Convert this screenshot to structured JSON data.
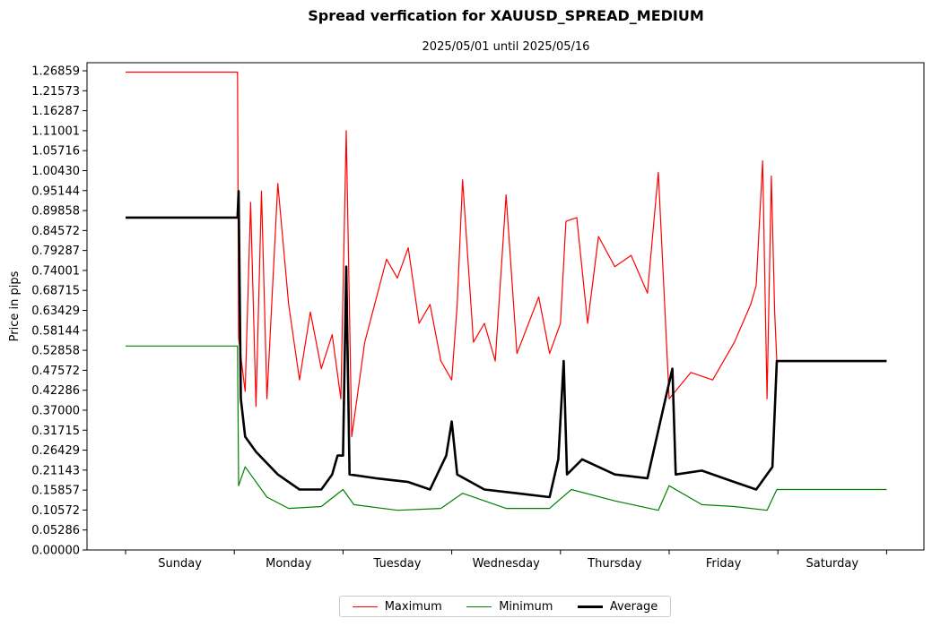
{
  "chart_data": {
    "type": "line",
    "title": "Spread verfication for XAUUSD_SPREAD_MEDIUM",
    "subtitle": "2025/05/01 until 2025/05/16",
    "ylabel": "Price in pips",
    "xlabel": "",
    "ylim": [
      0,
      1.29
    ],
    "yticks": [
      "0.00000",
      "0.05286",
      "0.10572",
      "0.15857",
      "0.21143",
      "0.26429",
      "0.31715",
      "0.37000",
      "0.42286",
      "0.47572",
      "0.52858",
      "0.58144",
      "0.63429",
      "0.68715",
      "0.74001",
      "0.79287",
      "0.84572",
      "0.89858",
      "0.95144",
      "1.00430",
      "1.05716",
      "1.11001",
      "1.16287",
      "1.21573",
      "1.26859"
    ],
    "categories": [
      "Sunday",
      "Monday",
      "Tuesday",
      "Wednesday",
      "Thursday",
      "Friday",
      "Saturday"
    ],
    "x_unit": "day of week (0 = start of Sunday)",
    "legend_position": "bottom-center",
    "grid": false,
    "colors": {
      "Maximum": "#ff0000",
      "Minimum": "#008000",
      "Average": "#000000"
    },
    "series": [
      {
        "name": "Maximum",
        "points": [
          [
            0,
            1.265
          ],
          [
            1.03,
            1.265
          ],
          [
            1.04,
            0.56
          ],
          [
            1.1,
            0.42
          ],
          [
            1.15,
            0.92
          ],
          [
            1.2,
            0.38
          ],
          [
            1.25,
            0.95
          ],
          [
            1.3,
            0.4
          ],
          [
            1.4,
            0.97
          ],
          [
            1.5,
            0.65
          ],
          [
            1.6,
            0.45
          ],
          [
            1.7,
            0.63
          ],
          [
            1.8,
            0.48
          ],
          [
            1.9,
            0.57
          ],
          [
            1.98,
            0.4
          ],
          [
            2.03,
            1.11
          ],
          [
            2.08,
            0.3
          ],
          [
            2.2,
            0.55
          ],
          [
            2.4,
            0.77
          ],
          [
            2.5,
            0.72
          ],
          [
            2.6,
            0.8
          ],
          [
            2.7,
            0.6
          ],
          [
            2.8,
            0.65
          ],
          [
            2.9,
            0.5
          ],
          [
            3.0,
            0.45
          ],
          [
            3.05,
            0.65
          ],
          [
            3.1,
            0.98
          ],
          [
            3.2,
            0.55
          ],
          [
            3.3,
            0.6
          ],
          [
            3.4,
            0.5
          ],
          [
            3.5,
            0.94
          ],
          [
            3.6,
            0.52
          ],
          [
            3.8,
            0.67
          ],
          [
            3.9,
            0.52
          ],
          [
            4.0,
            0.6
          ],
          [
            4.05,
            0.87
          ],
          [
            4.15,
            0.88
          ],
          [
            4.25,
            0.6
          ],
          [
            4.35,
            0.83
          ],
          [
            4.5,
            0.75
          ],
          [
            4.65,
            0.78
          ],
          [
            4.8,
            0.68
          ],
          [
            4.9,
            1.0
          ],
          [
            5.0,
            0.4
          ],
          [
            5.2,
            0.47
          ],
          [
            5.4,
            0.45
          ],
          [
            5.6,
            0.55
          ],
          [
            5.75,
            0.65
          ],
          [
            5.8,
            0.7
          ],
          [
            5.86,
            1.03
          ],
          [
            5.9,
            0.4
          ],
          [
            5.94,
            0.99
          ],
          [
            5.97,
            0.63
          ],
          [
            5.99,
            0.5
          ],
          [
            7.0,
            0.5
          ]
        ]
      },
      {
        "name": "Minimum",
        "points": [
          [
            0,
            0.54
          ],
          [
            1.03,
            0.54
          ],
          [
            1.04,
            0.17
          ],
          [
            1.1,
            0.22
          ],
          [
            1.3,
            0.14
          ],
          [
            1.5,
            0.11
          ],
          [
            1.8,
            0.115
          ],
          [
            2.0,
            0.16
          ],
          [
            2.1,
            0.12
          ],
          [
            2.5,
            0.105
          ],
          [
            2.9,
            0.11
          ],
          [
            3.1,
            0.15
          ],
          [
            3.5,
            0.11
          ],
          [
            3.9,
            0.11
          ],
          [
            4.1,
            0.16
          ],
          [
            4.5,
            0.13
          ],
          [
            4.9,
            0.105
          ],
          [
            5.0,
            0.17
          ],
          [
            5.3,
            0.12
          ],
          [
            5.6,
            0.115
          ],
          [
            5.9,
            0.105
          ],
          [
            5.99,
            0.16
          ],
          [
            7.0,
            0.16
          ]
        ]
      },
      {
        "name": "Average",
        "points": [
          [
            0,
            0.88
          ],
          [
            1.03,
            0.88
          ],
          [
            1.04,
            0.95
          ],
          [
            1.06,
            0.4
          ],
          [
            1.1,
            0.3
          ],
          [
            1.2,
            0.26
          ],
          [
            1.4,
            0.2
          ],
          [
            1.6,
            0.16
          ],
          [
            1.8,
            0.16
          ],
          [
            1.9,
            0.2
          ],
          [
            1.95,
            0.25
          ],
          [
            2.0,
            0.25
          ],
          [
            2.03,
            0.75
          ],
          [
            2.06,
            0.2
          ],
          [
            2.3,
            0.19
          ],
          [
            2.6,
            0.18
          ],
          [
            2.8,
            0.16
          ],
          [
            2.95,
            0.25
          ],
          [
            3.0,
            0.34
          ],
          [
            3.05,
            0.2
          ],
          [
            3.3,
            0.16
          ],
          [
            3.6,
            0.15
          ],
          [
            3.9,
            0.14
          ],
          [
            3.98,
            0.24
          ],
          [
            4.03,
            0.5
          ],
          [
            4.06,
            0.2
          ],
          [
            4.2,
            0.24
          ],
          [
            4.5,
            0.2
          ],
          [
            4.8,
            0.19
          ],
          [
            4.95,
            0.38
          ],
          [
            5.03,
            0.48
          ],
          [
            5.06,
            0.2
          ],
          [
            5.3,
            0.21
          ],
          [
            5.6,
            0.18
          ],
          [
            5.8,
            0.16
          ],
          [
            5.95,
            0.22
          ],
          [
            5.99,
            0.5
          ],
          [
            7.0,
            0.5
          ]
        ]
      }
    ]
  }
}
